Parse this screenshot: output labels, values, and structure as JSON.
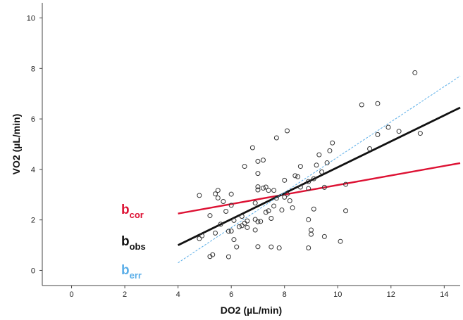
{
  "chart_data": {
    "type": "scatter",
    "xlabel": "DO2 (µL/min)",
    "ylabel": "VO2 (µL/min)",
    "xlim": [
      -1.1,
      14.6
    ],
    "ylim": [
      -0.6,
      10.6
    ],
    "xticks": [
      0,
      2,
      4,
      6,
      8,
      10,
      12,
      14
    ],
    "yticks": [
      0,
      2,
      4,
      6,
      8,
      10
    ],
    "xtick_labels": [
      "0",
      "2",
      "4",
      "6",
      "8",
      "10",
      "12",
      "14"
    ],
    "ytick_labels": [
      "0",
      "2",
      "4",
      "6",
      "8",
      "10"
    ],
    "grid": false,
    "points": [
      [
        4.8,
        2.97
      ],
      [
        4.8,
        1.26
      ],
      [
        4.9,
        1.37
      ],
      [
        5.2,
        2.17
      ],
      [
        5.2,
        0.55
      ],
      [
        5.3,
        0.62
      ],
      [
        5.4,
        3.03
      ],
      [
        5.4,
        1.48
      ],
      [
        5.5,
        2.87
      ],
      [
        5.5,
        3.17
      ],
      [
        5.6,
        1.83
      ],
      [
        5.7,
        2.73
      ],
      [
        5.8,
        2.34
      ],
      [
        5.9,
        1.55
      ],
      [
        5.9,
        0.54
      ],
      [
        6.0,
        1.56
      ],
      [
        6.0,
        3.02
      ],
      [
        6.0,
        2.58
      ],
      [
        6.1,
        1.98
      ],
      [
        6.1,
        1.22
      ],
      [
        6.2,
        0.93
      ],
      [
        6.3,
        1.73
      ],
      [
        6.4,
        2.14
      ],
      [
        6.4,
        1.77
      ],
      [
        6.5,
        4.12
      ],
      [
        6.5,
        1.87
      ],
      [
        6.6,
        1.96
      ],
      [
        6.8,
        4.86
      ],
      [
        6.9,
        2.02
      ],
      [
        6.9,
        1.6
      ],
      [
        6.9,
        2.67
      ],
      [
        7.0,
        4.32
      ],
      [
        7.0,
        3.84
      ],
      [
        7.0,
        3.31
      ],
      [
        7.0,
        3.19
      ],
      [
        7.0,
        1.93
      ],
      [
        7.0,
        0.94
      ],
      [
        7.1,
        1.94
      ],
      [
        7.2,
        3.26
      ],
      [
        7.2,
        4.37
      ],
      [
        7.3,
        3.3
      ],
      [
        7.4,
        2.36
      ],
      [
        7.4,
        3.17
      ],
      [
        7.5,
        2.06
      ],
      [
        7.5,
        0.93
      ],
      [
        7.6,
        3.17
      ],
      [
        7.6,
        2.55
      ],
      [
        7.7,
        2.86
      ],
      [
        7.7,
        5.25
      ],
      [
        7.8,
        0.89
      ],
      [
        7.9,
        2.39
      ],
      [
        8.0,
        3.57
      ],
      [
        8.1,
        5.53
      ],
      [
        8.1,
        3.02
      ],
      [
        8.2,
        2.76
      ],
      [
        8.3,
        2.48
      ],
      [
        8.4,
        3.75
      ],
      [
        8.5,
        3.71
      ],
      [
        8.6,
        4.12
      ],
      [
        8.9,
        2.01
      ],
      [
        8.9,
        3.52
      ],
      [
        8.9,
        3.24
      ],
      [
        8.9,
        0.89
      ],
      [
        9.0,
        1.6
      ],
      [
        9.0,
        1.43
      ],
      [
        9.1,
        3.63
      ],
      [
        9.1,
        2.43
      ],
      [
        9.2,
        4.17
      ],
      [
        9.3,
        4.58
      ],
      [
        9.5,
        1.34
      ],
      [
        9.5,
        3.29
      ],
      [
        9.6,
        4.26
      ],
      [
        9.7,
        4.74
      ],
      [
        9.8,
        5.05
      ],
      [
        10.1,
        1.15
      ],
      [
        10.3,
        2.36
      ],
      [
        10.3,
        3.41
      ],
      [
        10.9,
        6.56
      ],
      [
        11.2,
        4.82
      ],
      [
        11.5,
        6.61
      ],
      [
        11.5,
        5.38
      ],
      [
        11.9,
        5.67
      ],
      [
        12.3,
        5.51
      ],
      [
        12.9,
        7.83
      ],
      [
        13.1,
        5.43
      ],
      [
        8.6,
        3.3
      ],
      [
        8.0,
        2.9
      ],
      [
        7.3,
        2.3
      ],
      [
        6.6,
        1.7
      ],
      [
        9.4,
        3.9
      ]
    ],
    "lines": [
      {
        "name": "b_cor",
        "label_main": "b",
        "label_sub": "cor",
        "color": "#dd1133",
        "x": [
          4.0,
          14.6
        ],
        "y": [
          2.25,
          4.25
        ],
        "style": "solid"
      },
      {
        "name": "b_obs",
        "label_main": "b",
        "label_sub": "obs",
        "color": "#111111",
        "x": [
          4.0,
          14.6
        ],
        "y": [
          1.0,
          6.45
        ],
        "style": "solid"
      },
      {
        "name": "b_err",
        "label_main": "b",
        "label_sub": "err",
        "color": "#5aaee8",
        "x": [
          4.0,
          14.6
        ],
        "y": [
          0.3,
          7.7
        ],
        "style": "dashed"
      }
    ],
    "colors": {
      "points": "#333333",
      "axis": "#444444"
    }
  }
}
